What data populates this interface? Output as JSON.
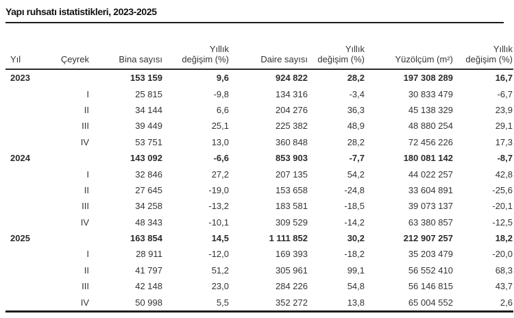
{
  "title": "Yapı ruhsatı istatistikleri, 2023-2025",
  "table": {
    "headers": [
      {
        "lines": [
          "Yıl"
        ]
      },
      {
        "lines": [
          "Çeyrek"
        ]
      },
      {
        "lines": [
          "Bina sayısı"
        ]
      },
      {
        "lines": [
          "Yıllık",
          "değişim (%)"
        ]
      },
      {
        "lines": [
          "Daire sayısı"
        ]
      },
      {
        "lines": [
          "Yıllık",
          "değişim (%)"
        ]
      },
      {
        "lines": [
          "Yüzölçüm (m²)"
        ]
      },
      {
        "lines": [
          "Yıllık",
          "değişim (%)"
        ]
      }
    ],
    "rows": [
      {
        "year": "2023",
        "quarter": "",
        "bold": true,
        "cells": [
          "153 159",
          "9,6",
          "924 822",
          "28,2",
          "197 308 289",
          "16,7"
        ]
      },
      {
        "year": "",
        "quarter": "I",
        "bold": false,
        "cells": [
          "25 815",
          "-9,8",
          "134 316",
          "-3,4",
          "30 833 479",
          "-6,7"
        ]
      },
      {
        "year": "",
        "quarter": "II",
        "bold": false,
        "cells": [
          "34 144",
          "6,6",
          "204 276",
          "36,3",
          "45 138 329",
          "23,9"
        ]
      },
      {
        "year": "",
        "quarter": "III",
        "bold": false,
        "cells": [
          "39 449",
          "25,1",
          "225 382",
          "48,9",
          "48 880 254",
          "29,1"
        ]
      },
      {
        "year": "",
        "quarter": "IV",
        "bold": false,
        "cells": [
          "53 751",
          "13,0",
          "360 848",
          "28,2",
          "72 456 226",
          "17,3"
        ]
      },
      {
        "year": "2024",
        "quarter": "",
        "bold": true,
        "cells": [
          "143 092",
          "-6,6",
          "853 903",
          "-7,7",
          "180 081 142",
          "-8,7"
        ]
      },
      {
        "year": "",
        "quarter": "I",
        "bold": false,
        "cells": [
          "32 846",
          "27,2",
          "207 135",
          "54,2",
          "44 022 257",
          "42,8"
        ]
      },
      {
        "year": "",
        "quarter": "II",
        "bold": false,
        "cells": [
          "27 645",
          "-19,0",
          "153 658",
          "-24,8",
          "33 604 891",
          "-25,6"
        ]
      },
      {
        "year": "",
        "quarter": "III",
        "bold": false,
        "cells": [
          "34 258",
          "-13,2",
          "183 581",
          "-18,5",
          "39 073 137",
          "-20,1"
        ]
      },
      {
        "year": "",
        "quarter": "IV",
        "bold": false,
        "cells": [
          "48 343",
          "-10,1",
          "309 529",
          "-14,2",
          "63 380 857",
          "-12,5"
        ]
      },
      {
        "year": "2025",
        "quarter": "",
        "bold": true,
        "cells": [
          "163 854",
          "14,5",
          "1 111 852",
          "30,2",
          "212 907 257",
          "18,2"
        ]
      },
      {
        "year": "",
        "quarter": "I",
        "bold": false,
        "cells": [
          "28 911",
          "-12,0",
          "169 393",
          "-18,2",
          "35 203 479",
          "-20,0"
        ]
      },
      {
        "year": "",
        "quarter": "II",
        "bold": false,
        "cells": [
          "41 797",
          "51,2",
          "305 961",
          "99,1",
          "56 552 410",
          "68,3"
        ]
      },
      {
        "year": "",
        "quarter": "III",
        "bold": false,
        "cells": [
          "42 148",
          "23,0",
          "284 226",
          "54,8",
          "56 146 815",
          "43,7"
        ]
      },
      {
        "year": "",
        "quarter": "IV",
        "bold": false,
        "cells": [
          "50 998",
          "5,5",
          "352 272",
          "13,8",
          "65 004 552",
          "2,6"
        ]
      }
    ]
  }
}
